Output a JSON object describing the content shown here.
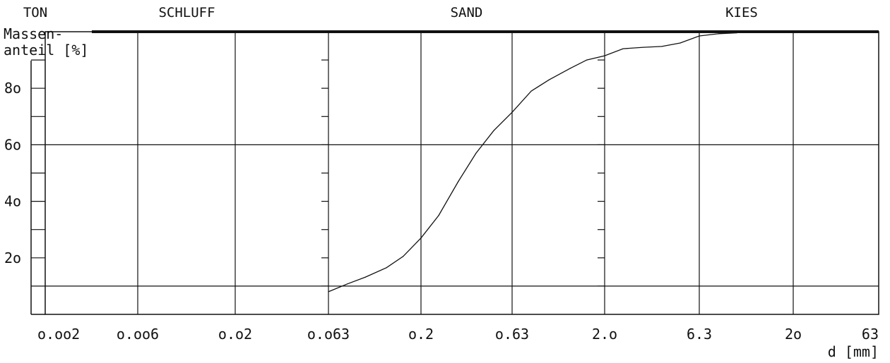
{
  "chart_data": {
    "type": "line",
    "title": "",
    "xlabel": "d [mm]",
    "ylabel_line1": "Massen-",
    "ylabel_line2": "anteil [%]",
    "x_scale": "log",
    "x_ticks": [
      "o.oo2",
      "o.oo6",
      "o.o2",
      "o.o63",
      "o.2",
      "o.63",
      "2.o",
      "6.3",
      "2o",
      "63"
    ],
    "x_tick_values": [
      0.002,
      0.006,
      0.02,
      0.063,
      0.2,
      0.63,
      2.0,
      6.3,
      20,
      63
    ],
    "y_ticks": [
      "2o",
      "4o",
      "6o",
      "8o"
    ],
    "y_tick_values": [
      20,
      40,
      60,
      80
    ],
    "ylim": [
      0,
      100
    ],
    "xlim": [
      0.002,
      63
    ],
    "grid": true,
    "reference_lines_y": [
      10,
      60
    ],
    "soil_classes": [
      {
        "name": "TON",
        "x_from": 0.001,
        "x_to": 0.002
      },
      {
        "name": "SCHLUFF",
        "x_from": 0.002,
        "x_to": 0.063
      },
      {
        "name": "SAND",
        "x_from": 0.063,
        "x_to": 2.0
      },
      {
        "name": "KIES",
        "x_from": 2.0,
        "x_to": 63
      }
    ],
    "series": [
      {
        "x": [
          0.063,
          0.08,
          0.1,
          0.13,
          0.16,
          0.2,
          0.25,
          0.32,
          0.4,
          0.5,
          0.63,
          0.8,
          1.0,
          1.3,
          1.6,
          2.0,
          2.5,
          3.2,
          4.0,
          5.0,
          6.3,
          8.0,
          10.0
        ],
        "y": [
          8.0,
          10.8,
          13.2,
          16.5,
          20.5,
          27.0,
          35.0,
          47.0,
          57.0,
          65.0,
          71.5,
          79.0,
          83.0,
          87.0,
          90.0,
          91.5,
          94.0,
          94.5,
          94.8,
          96.0,
          98.5,
          99.3,
          99.6
        ]
      }
    ]
  }
}
